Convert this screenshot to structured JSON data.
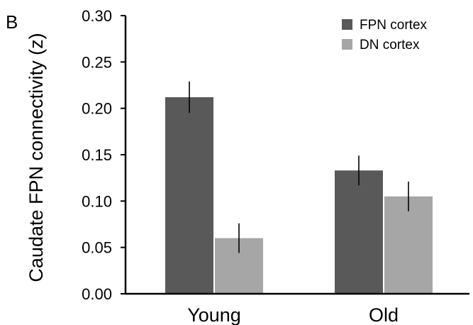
{
  "panel_label": "B",
  "chart_data": {
    "type": "bar",
    "ylabel": "Caudate FPN connectivity (z)",
    "xlabel": "",
    "ylim": [
      0,
      0.3
    ],
    "yticks": [
      0.0,
      0.05,
      0.1,
      0.15,
      0.2,
      0.25,
      0.3
    ],
    "ytick_labels": [
      "0.00",
      "0.05",
      "0.10",
      "0.15",
      "0.20",
      "0.25",
      "0.30"
    ],
    "categories": [
      "Young",
      "Old"
    ],
    "series": [
      {
        "name": "FPN cortex",
        "color": "#595959",
        "values": [
          0.212,
          0.133
        ],
        "errors": [
          0.017,
          0.016
        ]
      },
      {
        "name": "DN cortex",
        "color": "#a6a6a6",
        "values": [
          0.06,
          0.105
        ],
        "errors": [
          0.016,
          0.016
        ]
      }
    ],
    "legend_position": "top-right",
    "grid": false
  }
}
